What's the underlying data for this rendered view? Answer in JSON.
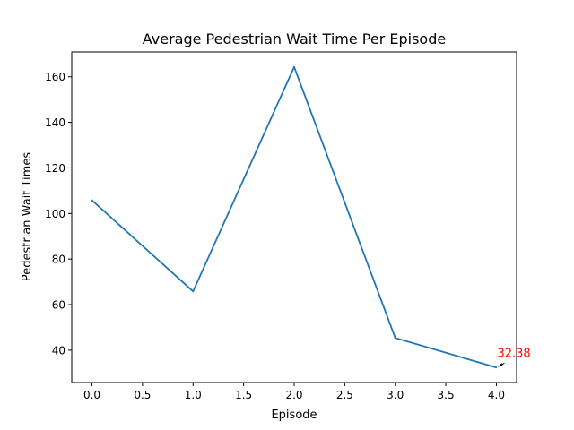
{
  "chart_data": {
    "type": "line",
    "title": "Average Pedestrian Wait Time Per Episode",
    "xlabel": "Episode",
    "ylabel": "Pedestrian Wait Times",
    "x": [
      0,
      1,
      2,
      3,
      4
    ],
    "y": [
      105.8,
      65.8,
      164.3,
      45.4,
      32.38
    ],
    "xlim": [
      -0.2,
      4.2
    ],
    "ylim": [
      25.8,
      170.9
    ],
    "xticks": [
      "0.0",
      "0.5",
      "1.0",
      "1.5",
      "2.0",
      "2.5",
      "3.0",
      "3.5",
      "4.0"
    ],
    "yticks": [
      "40",
      "60",
      "80",
      "100",
      "120",
      "140",
      "160"
    ],
    "line_color": "#1f77b4",
    "grid": false,
    "annotation": {
      "text": "32.38",
      "x": 4,
      "y": 32.38,
      "color": "#ff0000"
    }
  }
}
